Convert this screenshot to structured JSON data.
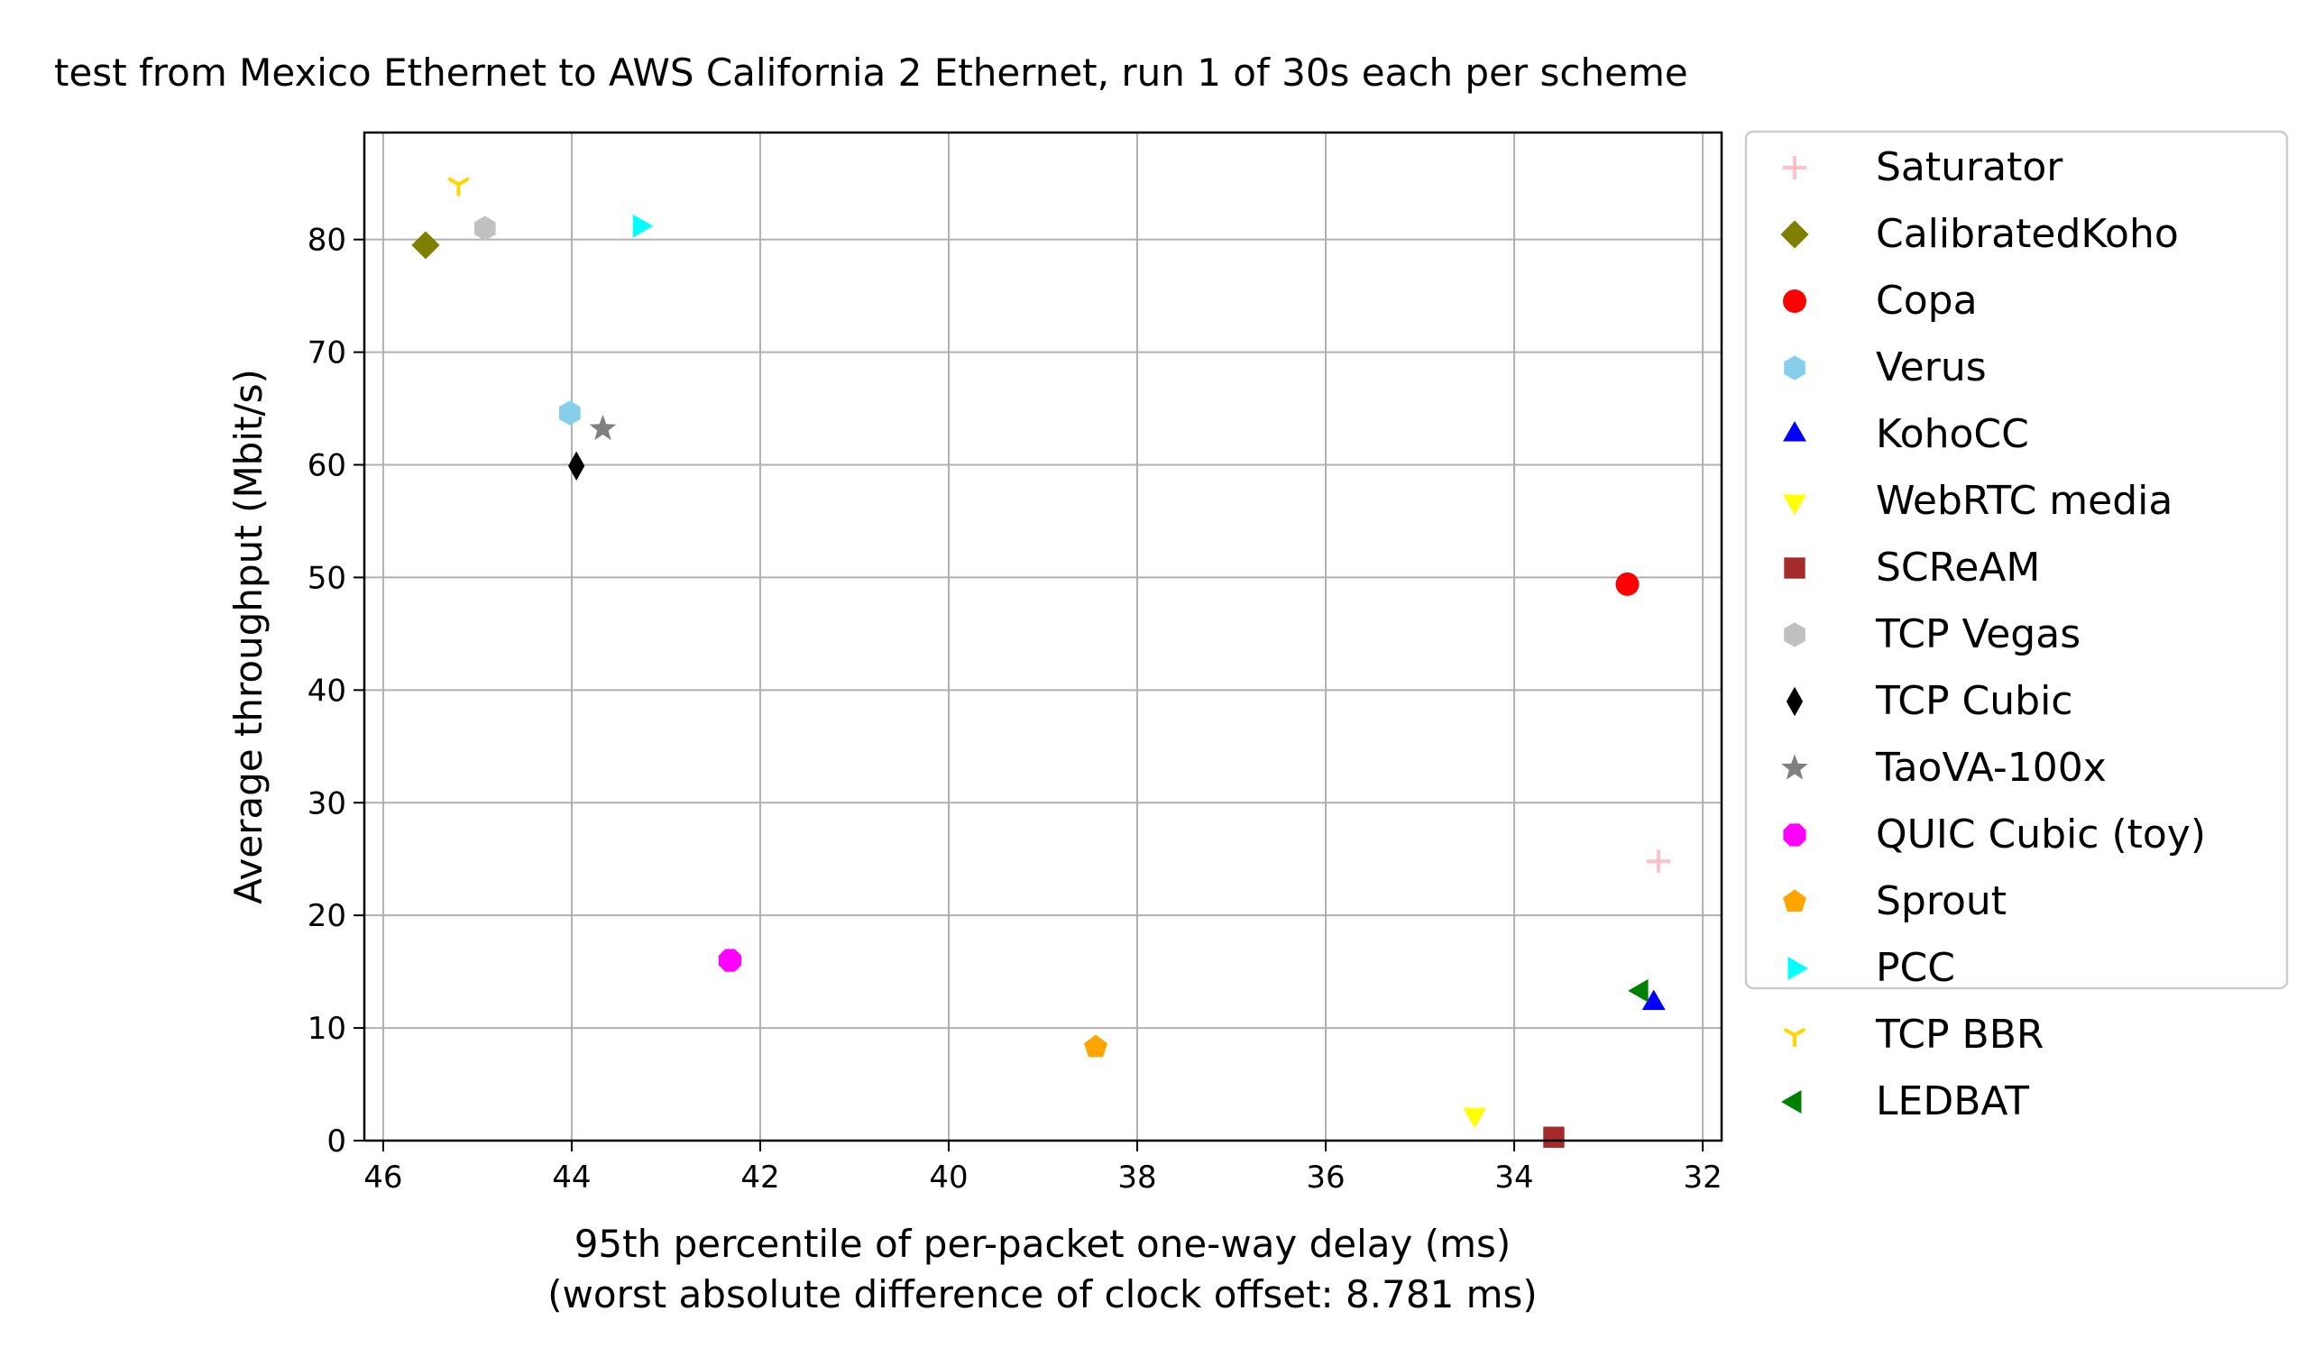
{
  "chart_data": {
    "type": "scatter",
    "title": "test from Mexico Ethernet to AWS California 2 Ethernet, run 1 of 30s each per scheme",
    "xlabel": "95th percentile of per-packet one-way delay (ms)",
    "xlabel2": "(worst absolute difference of clock offset: 8.781 ms)",
    "ylabel": "Average throughput (Mbit/s)",
    "xlim": [
      46.2,
      31.8
    ],
    "ylim": [
      0,
      89.5
    ],
    "x_inverted": true,
    "xticks": [
      46,
      44,
      42,
      40,
      38,
      36,
      34,
      32
    ],
    "yticks": [
      0,
      10,
      20,
      30,
      40,
      50,
      60,
      70,
      80
    ],
    "grid": true,
    "legend_position": "outside-right",
    "series": [
      {
        "name": "Saturator",
        "marker": "plus",
        "color": "#ffc0cb",
        "x": 32.47,
        "y": 24.8
      },
      {
        "name": "CalibratedKoho",
        "marker": "diamond",
        "color": "#808000",
        "x": 45.55,
        "y": 79.5
      },
      {
        "name": "Copa",
        "marker": "circle",
        "color": "#ff0000",
        "x": 32.8,
        "y": 49.4
      },
      {
        "name": "Verus",
        "marker": "hexagon",
        "color": "#87ceeb",
        "x": 44.02,
        "y": 64.6
      },
      {
        "name": "KohoCC",
        "marker": "triangle-up",
        "color": "#0000ff",
        "x": 32.52,
        "y": 12.2
      },
      {
        "name": "WebRTC media",
        "marker": "triangle-down",
        "color": "#ffff00",
        "x": 34.42,
        "y": 2.3
      },
      {
        "name": "SCReAM",
        "marker": "square",
        "color": "#a52a2a",
        "x": 33.58,
        "y": 0.3
      },
      {
        "name": "TCP Vegas",
        "marker": "hexagon",
        "color": "#c0c0c0",
        "x": 44.92,
        "y": 81.0
      },
      {
        "name": "TCP Cubic",
        "marker": "thin-diamond",
        "color": "#000000",
        "x": 43.95,
        "y": 59.9
      },
      {
        "name": "TaoVA-100x",
        "marker": "star",
        "color": "#808080",
        "x": 43.67,
        "y": 63.2
      },
      {
        "name": "QUIC Cubic (toy)",
        "marker": "octagon",
        "color": "#ff00ff",
        "x": 42.32,
        "y": 16.0
      },
      {
        "name": "Sprout",
        "marker": "pentagon",
        "color": "#ffa500",
        "x": 38.44,
        "y": 8.3
      },
      {
        "name": "PCC",
        "marker": "triangle-right",
        "color": "#00ffff",
        "x": 43.28,
        "y": 81.2
      },
      {
        "name": "TCP BBR",
        "marker": "tri-down",
        "color": "#ffd700",
        "x": 45.2,
        "y": 84.9
      },
      {
        "name": "LEDBAT",
        "marker": "triangle-left",
        "color": "#008000",
        "x": 32.65,
        "y": 13.3
      }
    ]
  }
}
